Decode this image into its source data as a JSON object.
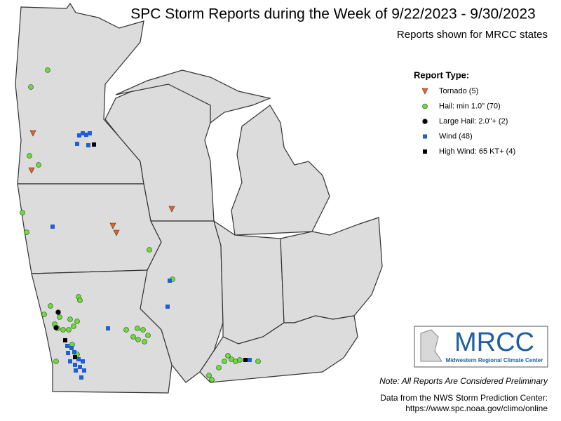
{
  "header": {
    "title": "SPC Storm Reports during the Week of 9/22/2023 - 9/30/2023",
    "subtitle": "Reports shown for MRCC states"
  },
  "legend": {
    "title": "Report Type:",
    "items": [
      {
        "label": "Tornado (5)",
        "shape": "triangle",
        "color": "#e8641e"
      },
      {
        "label": "Hail: min 1.0\" (70)",
        "shape": "circle",
        "color": "#66e033"
      },
      {
        "label": "Large Hail: 2.0\"+ (2)",
        "shape": "circle",
        "color": "#000000"
      },
      {
        "label": "Wind (48)",
        "shape": "square",
        "color": "#1f5fd6"
      },
      {
        "label": "High Wind: 65 KT+ (4)",
        "shape": "square",
        "color": "#000000"
      }
    ]
  },
  "logo": {
    "name": "MRCC",
    "subtitle": "Midwestern Regional Climate Center"
  },
  "notes": {
    "preliminary": "Note: All Reports Are Considered Preliminary",
    "source": "Data from the NWS Storm Prediction Center:",
    "url": "https://www.spc.noaa.gov/climo/online"
  }
}
